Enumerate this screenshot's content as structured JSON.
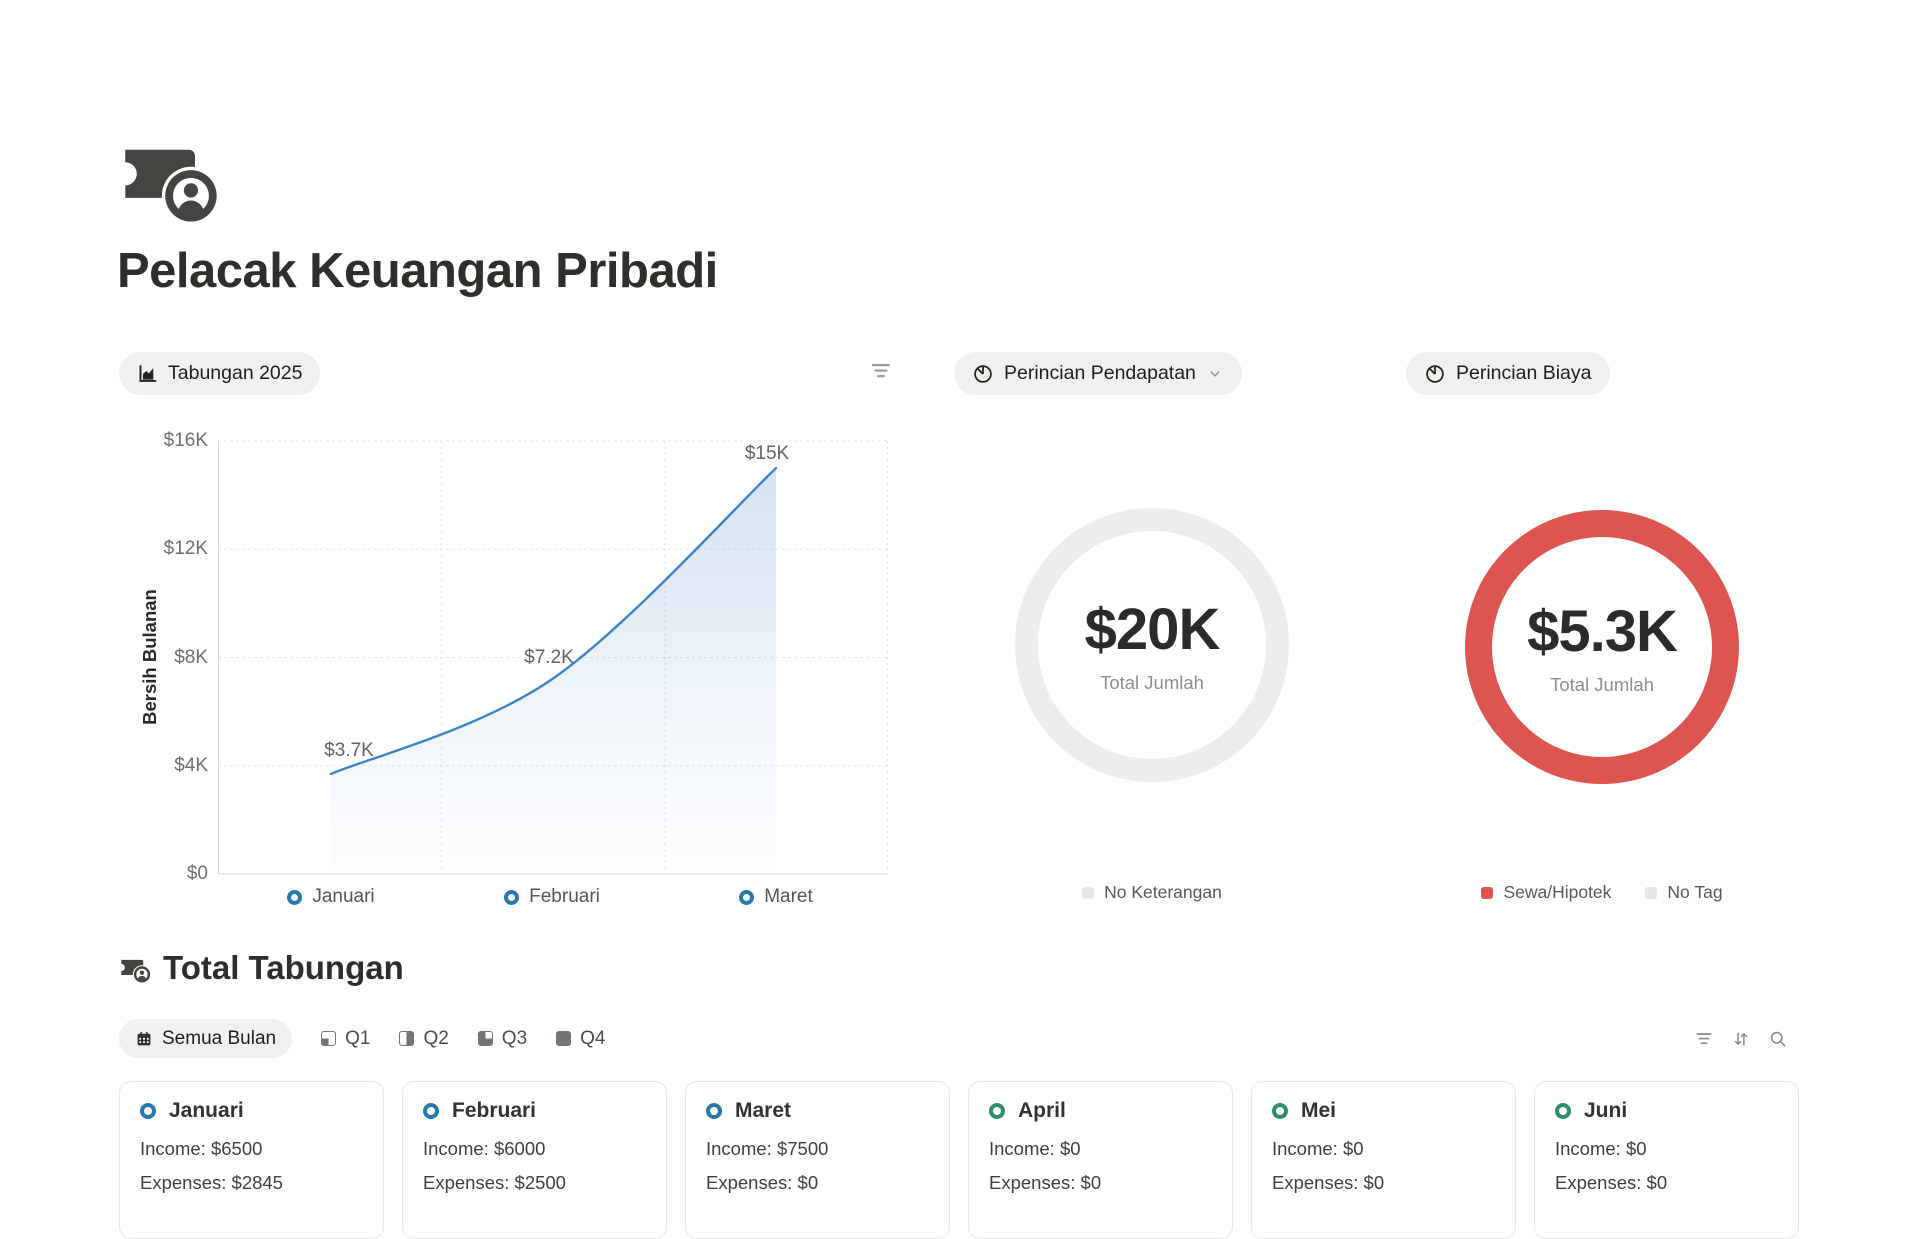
{
  "header": {
    "title": "Pelacak Keuangan Pribadi"
  },
  "savings_panel": {
    "pill_label": "Tabungan 2025",
    "ylabel": "Bersih Bulanan"
  },
  "income_panel": {
    "pill_label": "Perincian Pendapatan",
    "center_value": "$20K",
    "center_caption": "Total Jumlah",
    "legend": [
      {
        "label": "No Keterangan",
        "color": "#e7e6e3"
      }
    ]
  },
  "expense_panel": {
    "pill_label": "Perincian Biaya",
    "center_value": "$5.3K",
    "center_caption": "Total Jumlah",
    "legend": [
      {
        "label": "Sewa/Hipotek",
        "color": "#dd5551"
      },
      {
        "label": "No Tag",
        "color": "#e7e6e3"
      }
    ]
  },
  "chart_data": [
    {
      "type": "area",
      "title": "Tabungan 2025",
      "x": [
        "Januari",
        "Februari",
        "Maret"
      ],
      "values": [
        3700,
        7200,
        15000
      ],
      "point_labels": [
        "$3.7K",
        "$7.2K",
        "$15K"
      ],
      "ylabel": "Bersih Bulanan",
      "ylim": [
        0,
        16000
      ],
      "yticks": [
        {
          "value": 0,
          "label": "$0"
        },
        {
          "value": 4000,
          "label": "$4K"
        },
        {
          "value": 8000,
          "label": "$8K"
        },
        {
          "value": 12000,
          "label": "$12K"
        },
        {
          "value": 16000,
          "label": "$16K"
        }
      ],
      "grid": true,
      "legend_position": "none",
      "line_color": "#3e82c5",
      "marker_color": "#2878ab"
    },
    {
      "type": "donut",
      "title": "Perincian Pendapatan",
      "center_value": "$20K",
      "center_caption": "Total Jumlah",
      "slices": [
        {
          "label": "No Keterangan",
          "value": 20000,
          "color": "#eeedeb"
        }
      ]
    },
    {
      "type": "donut",
      "title": "Perincian Biaya",
      "center_value": "$5.3K",
      "center_caption": "Total Jumlah",
      "start_angle_deg": -24,
      "slices": [
        {
          "label": "No Tag",
          "value": 350,
          "color": "#ebeae8"
        },
        {
          "label": "Sewa/Hipotek",
          "value": 4950,
          "color": "#dd5551"
        }
      ]
    }
  ],
  "totals_section": {
    "title": "Total Tabungan",
    "tabs": [
      {
        "label": "Semua Bulan",
        "icon": "calendar-icon",
        "active": true
      },
      {
        "label": "Q1",
        "icon": "quarter-1-icon",
        "active": false
      },
      {
        "label": "Q2",
        "icon": "quarter-2-icon",
        "active": false
      },
      {
        "label": "Q3",
        "icon": "quarter-3-icon",
        "active": false
      },
      {
        "label": "Q4",
        "icon": "quarter-4-icon",
        "active": false
      }
    ],
    "cards": [
      {
        "month": "Januari",
        "marker_color": "#2878ab",
        "income": "Income: $6500",
        "expenses": "Expenses: $2845"
      },
      {
        "month": "Februari",
        "marker_color": "#2878ab",
        "income": "Income: $6000",
        "expenses": "Expenses: $2500"
      },
      {
        "month": "Maret",
        "marker_color": "#2878ab",
        "income": "Income: $7500",
        "expenses": "Expenses: $0"
      },
      {
        "month": "April",
        "marker_color": "#2f8e68",
        "income": "Income: $0",
        "expenses": "Expenses: $0"
      },
      {
        "month": "Mei",
        "marker_color": "#2f8e68",
        "income": "Income: $0",
        "expenses": "Expenses: $0"
      },
      {
        "month": "Juni",
        "marker_color": "#2f8e68",
        "income": "Income: $0",
        "expenses": "Expenses: $0"
      }
    ]
  }
}
